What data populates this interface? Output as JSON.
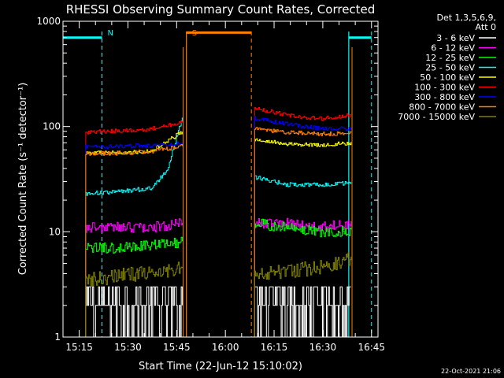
{
  "chart_data": {
    "type": "line",
    "title": "RHESSI Observing Summary Count Rates, Corrected",
    "xlabel": "Start Time (22-Jun-12 15:10:02)",
    "ylabel": "Corrected Count Rate (s⁻¹ detector⁻¹)",
    "y_scale": "log",
    "ylim": [
      1,
      1000
    ],
    "x_ticks": [
      "15:15",
      "15:30",
      "15:45",
      "16:00",
      "16:15",
      "16:30",
      "16:45"
    ],
    "y_ticks": [
      "1",
      "10",
      "100",
      "1000"
    ],
    "legend_header": [
      "Det 1,3,5,6,9,",
      "Att 0"
    ],
    "legend_position": "right",
    "timestamp": "22-Oct-2021 21:06",
    "markers": [
      {
        "label": "N",
        "time": "15:22",
        "color": "#00ffff"
      },
      {
        "label": "S",
        "time": "15:48",
        "color": "#ff8000"
      }
    ],
    "night_intervals": [
      {
        "start": "15:10",
        "end": "15:22",
        "level": 700
      },
      {
        "start": "16:38",
        "end": "16:45",
        "level": 700
      }
    ],
    "saa_intervals": [
      {
        "start": "15:48",
        "end": "16:08",
        "level": 780
      }
    ],
    "series": [
      {
        "name": "3 - 6 keV",
        "color": "#ffffff",
        "segments": [
          {
            "t": [
              "15:17",
              "15:27",
              "15:37",
              "15:47"
            ],
            "v": [
              2.0,
              1.6,
              1.8,
              2.1
            ]
          },
          {
            "t": [
              "16:09",
              "16:19",
              "16:29",
              "16:39"
            ],
            "v": [
              2.4,
              1.6,
              1.8,
              2.3
            ]
          }
        ]
      },
      {
        "name": "6 - 12 keV",
        "color": "#ff00ff",
        "segments": [
          {
            "t": [
              "15:17",
              "15:27",
              "15:37",
              "15:47"
            ],
            "v": [
              11,
              11,
              11,
              12
            ]
          },
          {
            "t": [
              "16:09",
              "16:19",
              "16:29",
              "16:39"
            ],
            "v": [
              12,
              12,
              11,
              12
            ]
          }
        ]
      },
      {
        "name": "12 - 25 keV",
        "color": "#00ff00",
        "segments": [
          {
            "t": [
              "15:17",
              "15:27",
              "15:37",
              "15:47"
            ],
            "v": [
              7,
              7,
              7.5,
              8
            ]
          },
          {
            "t": [
              "16:09",
              "16:19",
              "16:29",
              "16:39"
            ],
            "v": [
              12,
              11,
              10,
              10
            ]
          }
        ]
      },
      {
        "name": "25 - 50 keV",
        "color": "#00ffff",
        "segments": [
          {
            "t": [
              "15:17",
              "15:27",
              "15:37",
              "15:42",
              "15:47"
            ],
            "v": [
              23,
              24,
              26,
              38,
              130
            ]
          },
          {
            "t": [
              "16:09",
              "16:19",
              "16:29",
              "16:39"
            ],
            "v": [
              33,
              28,
              28,
              29
            ]
          }
        ]
      },
      {
        "name": "50 - 100 keV",
        "color": "#ffff00",
        "segments": [
          {
            "t": [
              "15:17",
              "15:27",
              "15:37",
              "15:47"
            ],
            "v": [
              56,
              56,
              58,
              90
            ]
          },
          {
            "t": [
              "16:09",
              "16:19",
              "16:29",
              "16:39"
            ],
            "v": [
              75,
              68,
              66,
              70
            ]
          }
        ]
      },
      {
        "name": "100 - 300 keV",
        "color": "#ff0000",
        "segments": [
          {
            "t": [
              "15:17",
              "15:27",
              "15:37",
              "15:47"
            ],
            "v": [
              88,
              91,
              95,
              110
            ]
          },
          {
            "t": [
              "16:09",
              "16:19",
              "16:29",
              "16:39"
            ],
            "v": [
              150,
              128,
              118,
              128
            ]
          }
        ]
      },
      {
        "name": "300 - 800 keV",
        "color": "#0000ff",
        "segments": [
          {
            "t": [
              "15:17",
              "15:27",
              "15:37",
              "15:47"
            ],
            "v": [
              64,
              65,
              66,
              70
            ]
          },
          {
            "t": [
              "16:09",
              "16:19",
              "16:29",
              "16:39"
            ],
            "v": [
              120,
              105,
              96,
              96
            ]
          }
        ]
      },
      {
        "name": "800 - 7000 keV",
        "color": "#ff8000",
        "segments": [
          {
            "t": [
              "15:17",
              "15:27",
              "15:37",
              "15:47"
            ],
            "v": [
              55,
              56,
              58,
              65
            ]
          },
          {
            "t": [
              "16:09",
              "16:19",
              "16:29",
              "16:39"
            ],
            "v": [
              95,
              88,
              85,
              86
            ]
          }
        ]
      },
      {
        "name": "7000 - 15000 keV",
        "color": "#808000",
        "segments": [
          {
            "t": [
              "15:17",
              "15:27",
              "15:37",
              "15:47"
            ],
            "v": [
              3.5,
              3.8,
              4.1,
              4.5
            ]
          },
          {
            "t": [
              "16:09",
              "16:19",
              "16:29",
              "16:39"
            ],
            "v": [
              3.9,
              4.2,
              4.6,
              5.5
            ]
          }
        ]
      }
    ]
  }
}
